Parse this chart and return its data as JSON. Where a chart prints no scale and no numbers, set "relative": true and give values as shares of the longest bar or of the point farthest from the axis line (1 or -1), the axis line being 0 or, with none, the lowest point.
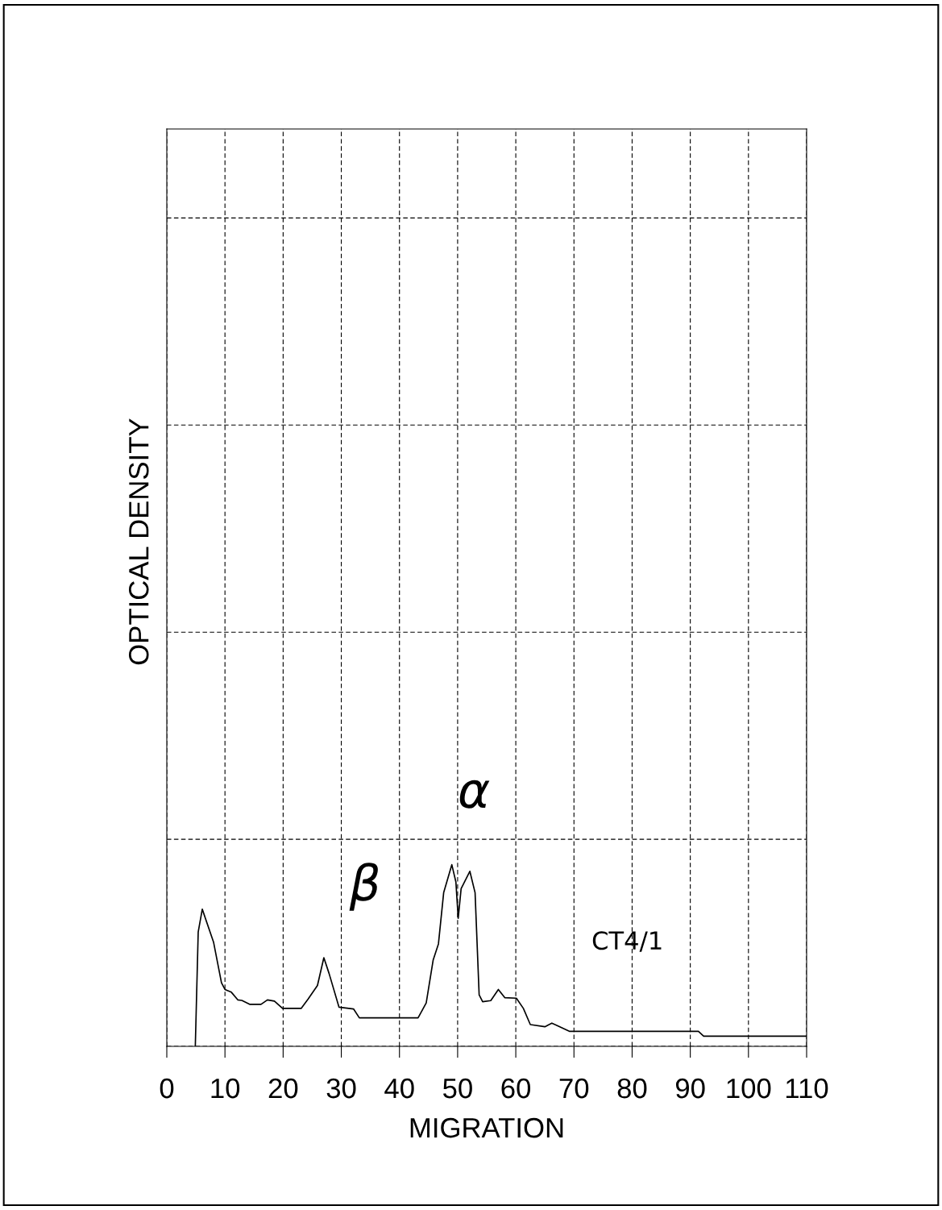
{
  "chart_data": {
    "type": "line",
    "relative": true,
    "xlabel": "MIGRATION",
    "xlim": [
      0,
      110
    ],
    "xticks": [
      0,
      10,
      20,
      30,
      40,
      50,
      60,
      70,
      80,
      90,
      100,
      110
    ],
    "grid": true,
    "color": "#000000",
    "x": [
      4.9,
      5.4,
      6.1,
      8.05,
      9.4,
      10.0,
      11.1,
      12.2,
      12.9,
      14.3,
      16.2,
      17.3,
      18.5,
      19.9,
      23.1,
      24.3,
      25.9,
      27.0,
      27.9,
      29.6,
      32.1,
      33.1,
      43.2,
      44.6,
      45.8,
      46.7,
      47.6,
      49.0,
      49.7,
      50.1,
      50.6,
      52.1,
      53.0,
      53.7,
      54.3,
      55.7,
      57.0,
      58.1,
      60.1,
      61.3,
      62.5,
      65.0,
      66.2,
      69.2,
      91.4,
      92.3,
      110
    ],
    "values": [
      0,
      0.63,
      0.755,
      0.572,
      0.35,
      0.313,
      0.298,
      0.256,
      0.253,
      0.231,
      0.231,
      0.256,
      0.249,
      0.209,
      0.209,
      0.261,
      0.335,
      0.488,
      0.401,
      0.216,
      0.206,
      0.157,
      0.157,
      0.239,
      0.476,
      0.564,
      0.846,
      1.0,
      0.905,
      0.705,
      0.868,
      0.964,
      0.846,
      0.283,
      0.246,
      0.252,
      0.313,
      0.268,
      0.265,
      0.209,
      0.12,
      0.108,
      0.128,
      0.083,
      0.083,
      0.056,
      0.056
    ],
    "annotations": [
      "α",
      "β",
      "CT4/1",
      "OPTICAL DENSITY"
    ]
  }
}
